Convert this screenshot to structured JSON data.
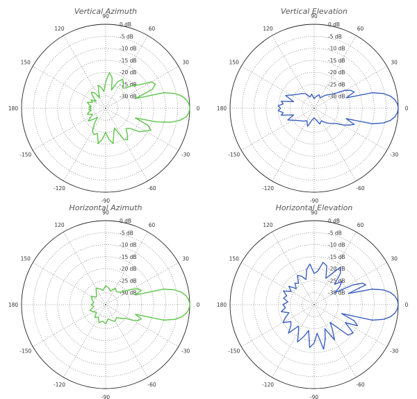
{
  "chart_data": [
    {
      "type": "polar",
      "title": "Vertical Azimuth",
      "color": "#5ec44a",
      "radial_unit": "dB",
      "radial_range": [
        -35,
        0
      ],
      "ring_labels": [
        "0 dB",
        "-5 dB",
        "-10 dB",
        "-15 dB",
        "-20 dB",
        "-25 dB",
        "-30 dB"
      ],
      "angle_labels": [
        "90",
        "60",
        "30",
        "0",
        "-30",
        "-60",
        "-90",
        "-120",
        "-150",
        "180",
        "150",
        "120"
      ],
      "pattern": {
        "angles_deg": [
          0,
          3,
          6,
          9,
          12,
          15,
          18,
          22,
          26,
          30,
          35,
          40,
          45,
          50,
          55,
          60,
          66,
          72,
          78,
          84,
          90,
          96,
          102,
          108,
          114,
          120,
          126,
          132,
          138,
          144,
          150,
          156,
          162,
          168,
          172,
          176,
          180,
          184,
          188,
          192,
          198,
          204,
          210,
          216,
          222,
          228,
          234,
          240,
          246,
          252,
          258,
          264,
          270,
          276,
          282,
          288,
          294,
          300,
          305,
          310,
          315,
          320,
          325,
          330,
          334,
          338,
          342,
          345,
          348,
          351,
          354,
          357
        ],
        "gain_db": [
          0,
          -0.3,
          -1.2,
          -2.8,
          -5.5,
          -10,
          -22,
          -14,
          -12,
          -13,
          -18,
          -20,
          -23,
          -24,
          -22,
          -21,
          -23,
          -27,
          -22,
          -20,
          -24,
          -28,
          -26,
          -25,
          -28,
          -30,
          -27,
          -26,
          -28,
          -30,
          -28,
          -29,
          -27,
          -28,
          -29,
          -28,
          -29,
          -28,
          -29,
          -28,
          -27,
          -29,
          -28,
          -26,
          -28,
          -30,
          -27,
          -24,
          -23,
          -24,
          -20,
          -22,
          -25,
          -22,
          -20,
          -24,
          -26,
          -20,
          -19,
          -21,
          -23,
          -22,
          -18,
          -16,
          -14,
          -16,
          -22,
          -13,
          -7,
          -3.5,
          -1.2,
          -0.3
        ]
      }
    },
    {
      "type": "polar",
      "title": "Vertical Elevation",
      "color": "#3a5fc0",
      "radial_unit": "dB",
      "radial_range": [
        -35,
        0
      ],
      "ring_labels": [
        "0 dB",
        "-5 dB",
        "-10 dB",
        "-15 dB",
        "-20 dB",
        "-25 dB",
        "-30 dB"
      ],
      "angle_labels": [
        "90",
        "60",
        "30",
        "0",
        "-30",
        "-60",
        "-90",
        "-120",
        "-150",
        "180",
        "150",
        "120"
      ],
      "pattern": {
        "angles_deg": [
          0,
          3,
          6,
          9,
          12,
          15,
          18,
          22,
          26,
          30,
          35,
          40,
          50,
          60,
          70,
          80,
          90,
          100,
          110,
          120,
          130,
          140,
          150,
          156,
          162,
          168,
          172,
          176,
          180,
          184,
          188,
          192,
          198,
          204,
          210,
          220,
          230,
          240,
          250,
          260,
          270,
          280,
          290,
          300,
          310,
          320,
          325,
          330,
          334,
          338,
          342,
          345,
          348,
          351,
          354,
          357
        ],
        "gain_db": [
          0,
          -0.3,
          -1.2,
          -2.8,
          -5.5,
          -10,
          -21,
          -17,
          -18,
          -20,
          -24,
          -26,
          -28,
          -30,
          -29,
          -30,
          -31,
          -29,
          -30,
          -28,
          -27,
          -26,
          -24,
          -22,
          -26,
          -21,
          -22,
          -20,
          -21,
          -20,
          -22,
          -21,
          -26,
          -23,
          -25,
          -27,
          -28,
          -29,
          -27,
          -30,
          -31,
          -30,
          -28,
          -29,
          -27,
          -25,
          -24,
          -21,
          -19,
          -17,
          -21,
          -10,
          -5.5,
          -2.8,
          -1.2,
          -0.3
        ]
      }
    },
    {
      "type": "polar",
      "title": "Horizontal Azimuth",
      "color": "#5ec44a",
      "radial_unit": "dB",
      "radial_range": [
        -35,
        0
      ],
      "ring_labels": [
        "0 dB",
        "-5 dB",
        "-10 dB",
        "-15 dB",
        "-20 dB",
        "-25 dB",
        "-30 dB"
      ],
      "angle_labels": [
        "90",
        "60",
        "30",
        "0",
        "-30",
        "-60",
        "-90",
        "-120",
        "-150",
        "180",
        "150",
        "120"
      ],
      "pattern": {
        "angles_deg": [
          0,
          3,
          6,
          9,
          12,
          15,
          18,
          22,
          26,
          30,
          35,
          40,
          50,
          60,
          70,
          80,
          90,
          100,
          110,
          120,
          130,
          140,
          150,
          160,
          170,
          180,
          190,
          200,
          210,
          220,
          230,
          240,
          250,
          260,
          270,
          280,
          290,
          300,
          310,
          320,
          325,
          330,
          334,
          338,
          342,
          345,
          348,
          351,
          354,
          357
        ],
        "gain_db": [
          0,
          -0.3,
          -1.2,
          -2.8,
          -5.5,
          -10,
          -22,
          -19,
          -20,
          -22,
          -25,
          -27,
          -28,
          -27,
          -29,
          -28,
          -27,
          -29,
          -28,
          -27,
          -29,
          -30,
          -28,
          -29,
          -30,
          -29,
          -30,
          -28,
          -29,
          -30,
          -28,
          -29,
          -27,
          -28,
          -27,
          -29,
          -28,
          -27,
          -28,
          -26,
          -25,
          -22,
          -20,
          -19,
          -22,
          -10,
          -5.5,
          -2.8,
          -1.2,
          -0.3
        ]
      }
    },
    {
      "type": "polar",
      "title": "Horizontal Elevation",
      "color": "#3a5fc0",
      "radial_unit": "dB",
      "radial_range": [
        -35,
        0
      ],
      "ring_labels": [
        "0 dB",
        "-5 dB",
        "-10 dB",
        "-15 dB",
        "-20 dB",
        "-25 dB",
        "-30 dB"
      ],
      "angle_labels": [
        "90",
        "60",
        "30",
        "0",
        "-30",
        "-60",
        "-90",
        "-120",
        "-150",
        "180",
        "150",
        "120"
      ],
      "pattern": {
        "angles_deg": [
          0,
          3,
          6,
          9,
          12,
          15,
          18,
          21,
          24,
          27,
          30,
          35,
          40,
          45,
          50,
          55,
          60,
          66,
          72,
          78,
          84,
          90,
          96,
          102,
          108,
          114,
          120,
          126,
          132,
          138,
          144,
          150,
          156,
          162,
          168,
          174,
          180,
          186,
          192,
          198,
          204,
          210,
          216,
          222,
          228,
          234,
          240,
          246,
          252,
          258,
          264,
          270,
          276,
          282,
          288,
          294,
          300,
          306,
          312,
          318,
          324,
          330,
          334,
          338,
          342,
          345,
          348,
          351,
          354,
          357
        ],
        "gain_db": [
          0,
          -0.3,
          -1.2,
          -2.8,
          -5.5,
          -10,
          -20,
          -12,
          -13,
          -17,
          -25,
          -22,
          -20,
          -23,
          -18,
          -16,
          -20,
          -23,
          -18,
          -17,
          -21,
          -22,
          -18,
          -20,
          -24,
          -22,
          -21,
          -24,
          -23,
          -25,
          -22,
          -24,
          -21,
          -23,
          -22,
          -24,
          -22,
          -23,
          -21,
          -24,
          -22,
          -20,
          -23,
          -22,
          -19,
          -24,
          -22,
          -18,
          -21,
          -24,
          -17,
          -19,
          -23,
          -16,
          -20,
          -24,
          -18,
          -22,
          -25,
          -16,
          -15,
          -20,
          -15,
          -17,
          -23,
          -10,
          -5.5,
          -2.8,
          -1.2,
          -0.3
        ]
      }
    }
  ]
}
